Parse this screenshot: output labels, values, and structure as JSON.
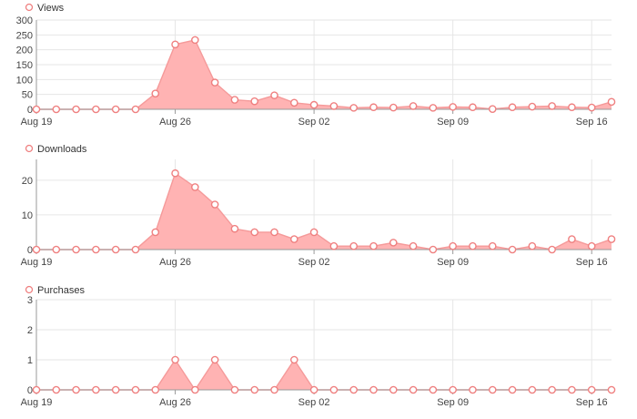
{
  "colors": {
    "area_fill": "#ffb3b3",
    "line": "#f59a9a",
    "marker_stroke": "#ef8080",
    "marker_fill": "#ffffff",
    "grid": "#e6e6e6",
    "axis": "#999999",
    "text": "#444444"
  },
  "chart_data": [
    {
      "type": "area",
      "legend": "Views",
      "x": [
        "2019-08-19",
        "2019-08-20",
        "2019-08-21",
        "2019-08-22",
        "2019-08-23",
        "2019-08-24",
        "2019-08-25",
        "2019-08-26",
        "2019-08-27",
        "2019-08-28",
        "2019-08-29",
        "2019-08-30",
        "2019-08-31",
        "2019-09-01",
        "2019-09-02",
        "2019-09-03",
        "2019-09-04",
        "2019-09-05",
        "2019-09-06",
        "2019-09-07",
        "2019-09-08",
        "2019-09-09",
        "2019-09-10",
        "2019-09-11",
        "2019-09-12",
        "2019-09-13",
        "2019-09-14",
        "2019-09-15",
        "2019-09-16",
        "2019-09-17"
      ],
      "values": [
        0,
        0,
        0,
        0,
        0,
        0,
        53,
        218,
        233,
        90,
        32,
        27,
        47,
        22,
        15,
        11,
        5,
        7,
        6,
        11,
        5,
        8,
        7,
        1,
        7,
        9,
        11,
        7,
        6,
        25
      ],
      "ylim": [
        0,
        300
      ],
      "yticks": [
        "0",
        "50",
        "100",
        "150",
        "200",
        "250",
        "300"
      ],
      "ytick_values": [
        0,
        50,
        100,
        150,
        200,
        250,
        300
      ],
      "xticks": [
        "Aug 19",
        "Aug 26",
        "Sep 02",
        "Sep 09",
        "Sep 16"
      ],
      "xtick_dates": [
        "2019-08-19",
        "2019-08-26",
        "2019-09-02",
        "2019-09-09",
        "2019-09-16"
      ],
      "grid": true,
      "legend_position": "top-left"
    },
    {
      "type": "area",
      "legend": "Downloads",
      "x": [
        "2019-08-19",
        "2019-08-20",
        "2019-08-21",
        "2019-08-22",
        "2019-08-23",
        "2019-08-24",
        "2019-08-25",
        "2019-08-26",
        "2019-08-27",
        "2019-08-28",
        "2019-08-29",
        "2019-08-30",
        "2019-08-31",
        "2019-09-01",
        "2019-09-02",
        "2019-09-03",
        "2019-09-04",
        "2019-09-05",
        "2019-09-06",
        "2019-09-07",
        "2019-09-08",
        "2019-09-09",
        "2019-09-10",
        "2019-09-11",
        "2019-09-12",
        "2019-09-13",
        "2019-09-14",
        "2019-09-15",
        "2019-09-16",
        "2019-09-17"
      ],
      "values": [
        0,
        0,
        0,
        0,
        0,
        0,
        5,
        22,
        18,
        13,
        6,
        5,
        5,
        3,
        5,
        1,
        1,
        1,
        2,
        1,
        0,
        1,
        1,
        1,
        0,
        1,
        0,
        3,
        1,
        3
      ],
      "ylim": [
        0,
        26
      ],
      "yticks": [
        "0",
        "10",
        "20"
      ],
      "ytick_values": [
        0,
        10,
        20
      ],
      "xticks": [
        "Aug 19",
        "Aug 26",
        "Sep 02",
        "Sep 09",
        "Sep 16"
      ],
      "xtick_dates": [
        "2019-08-19",
        "2019-08-26",
        "2019-09-02",
        "2019-09-09",
        "2019-09-16"
      ],
      "grid": true,
      "legend_position": "top-left"
    },
    {
      "type": "area",
      "legend": "Purchases",
      "x": [
        "2019-08-19",
        "2019-08-20",
        "2019-08-21",
        "2019-08-22",
        "2019-08-23",
        "2019-08-24",
        "2019-08-25",
        "2019-08-26",
        "2019-08-27",
        "2019-08-28",
        "2019-08-29",
        "2019-08-30",
        "2019-08-31",
        "2019-09-01",
        "2019-09-02",
        "2019-09-03",
        "2019-09-04",
        "2019-09-05",
        "2019-09-06",
        "2019-09-07",
        "2019-09-08",
        "2019-09-09",
        "2019-09-10",
        "2019-09-11",
        "2019-09-12",
        "2019-09-13",
        "2019-09-14",
        "2019-09-15",
        "2019-09-16",
        "2019-09-17"
      ],
      "values": [
        0,
        0,
        0,
        0,
        0,
        0,
        0,
        1,
        0,
        1,
        0,
        0,
        0,
        1,
        0,
        0,
        0,
        0,
        0,
        0,
        0,
        0,
        0,
        0,
        0,
        0,
        0,
        0,
        0,
        0
      ],
      "ylim": [
        0,
        3
      ],
      "yticks": [
        "0",
        "1",
        "2",
        "3"
      ],
      "ytick_values": [
        0,
        1,
        2,
        3
      ],
      "xticks": [
        "Aug 19",
        "Aug 26",
        "Sep 02",
        "Sep 09",
        "Sep 16"
      ],
      "xtick_dates": [
        "2019-08-19",
        "2019-08-26",
        "2019-09-02",
        "2019-09-09",
        "2019-09-16"
      ],
      "grid": true,
      "legend_position": "top-left"
    }
  ]
}
